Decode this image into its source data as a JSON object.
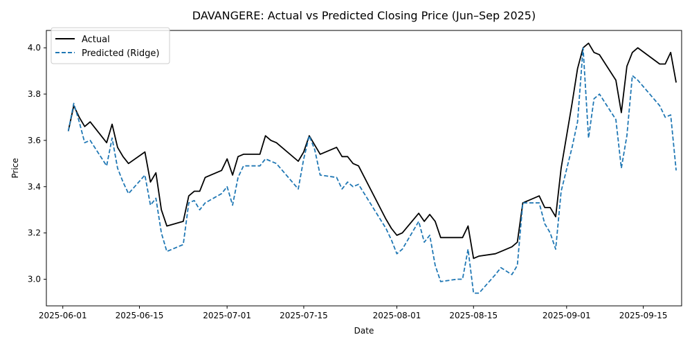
{
  "chart_data": {
    "type": "line",
    "title": "DAVANGERE: Actual vs Predicted Closing Price (Jun–Sep 2025)",
    "xlabel": "Date",
    "ylabel": "Price",
    "xlim": [
      "2025-05-29",
      "2025-09-22"
    ],
    "ylim": [
      2.885,
      4.075
    ],
    "x_ticks": [
      "2025-06-01",
      "2025-06-15",
      "2025-07-01",
      "2025-07-15",
      "2025-08-01",
      "2025-08-15",
      "2025-09-01",
      "2025-09-15"
    ],
    "y_ticks": [
      "3.0",
      "3.2",
      "3.4",
      "3.6",
      "3.8",
      "4.0"
    ],
    "grid": false,
    "legend": "top-left",
    "series": [
      {
        "name": "Actual",
        "color": "#000000",
        "style": "solid",
        "points": [
          [
            "2025-06-02",
            3.64
          ],
          [
            "2025-06-03",
            3.75
          ],
          [
            "2025-06-04",
            3.7
          ],
          [
            "2025-06-05",
            3.66
          ],
          [
            "2025-06-06",
            3.68
          ],
          [
            "2025-06-09",
            3.59
          ],
          [
            "2025-06-10",
            3.67
          ],
          [
            "2025-06-11",
            3.57
          ],
          [
            "2025-06-12",
            3.53
          ],
          [
            "2025-06-13",
            3.5
          ],
          [
            "2025-06-16",
            3.55
          ],
          [
            "2025-06-17",
            3.42
          ],
          [
            "2025-06-18",
            3.46
          ],
          [
            "2025-06-19",
            3.3
          ],
          [
            "2025-06-20",
            3.23
          ],
          [
            "2025-06-23",
            3.25
          ],
          [
            "2025-06-24",
            3.36
          ],
          [
            "2025-06-25",
            3.38
          ],
          [
            "2025-06-26",
            3.38
          ],
          [
            "2025-06-27",
            3.44
          ],
          [
            "2025-06-30",
            3.47
          ],
          [
            "2025-07-01",
            3.52
          ],
          [
            "2025-07-02",
            3.45
          ],
          [
            "2025-07-03",
            3.53
          ],
          [
            "2025-07-04",
            3.54
          ],
          [
            "2025-07-07",
            3.54
          ],
          [
            "2025-07-08",
            3.62
          ],
          [
            "2025-07-09",
            3.6
          ],
          [
            "2025-07-10",
            3.59
          ],
          [
            "2025-07-14",
            3.51
          ],
          [
            "2025-07-15",
            3.55
          ],
          [
            "2025-07-16",
            3.62
          ],
          [
            "2025-07-17",
            3.58
          ],
          [
            "2025-07-18",
            3.54
          ],
          [
            "2025-07-21",
            3.57
          ],
          [
            "2025-07-22",
            3.53
          ],
          [
            "2025-07-23",
            3.53
          ],
          [
            "2025-07-24",
            3.5
          ],
          [
            "2025-07-25",
            3.49
          ],
          [
            "2025-07-30",
            3.26
          ],
          [
            "2025-07-31",
            3.22
          ],
          [
            "2025-08-01",
            3.19
          ],
          [
            "2025-08-02",
            3.2
          ],
          [
            "2025-08-05",
            3.285
          ],
          [
            "2025-08-06",
            3.25
          ],
          [
            "2025-08-07",
            3.28
          ],
          [
            "2025-08-08",
            3.25
          ],
          [
            "2025-08-09",
            3.18
          ],
          [
            "2025-08-12",
            3.18
          ],
          [
            "2025-08-13",
            3.18
          ],
          [
            "2025-08-14",
            3.23
          ],
          [
            "2025-08-15",
            3.09
          ],
          [
            "2025-08-16",
            3.1
          ],
          [
            "2025-08-19",
            3.11
          ],
          [
            "2025-08-20",
            3.12
          ],
          [
            "2025-08-22",
            3.14
          ],
          [
            "2025-08-23",
            3.16
          ],
          [
            "2025-08-24",
            3.33
          ],
          [
            "2025-08-27",
            3.36
          ],
          [
            "2025-08-28",
            3.31
          ],
          [
            "2025-08-29",
            3.31
          ],
          [
            "2025-08-30",
            3.27
          ],
          [
            "2025-08-31",
            3.48
          ],
          [
            "2025-09-02",
            3.76
          ],
          [
            "2025-09-03",
            3.91
          ],
          [
            "2025-09-04",
            4.0
          ],
          [
            "2025-09-05",
            4.02
          ],
          [
            "2025-09-06",
            3.98
          ],
          [
            "2025-09-07",
            3.97
          ],
          [
            "2025-09-10",
            3.86
          ],
          [
            "2025-09-11",
            3.72
          ],
          [
            "2025-09-12",
            3.92
          ],
          [
            "2025-09-13",
            3.98
          ],
          [
            "2025-09-14",
            4.0
          ],
          [
            "2025-09-18",
            3.93
          ],
          [
            "2025-09-19",
            3.93
          ],
          [
            "2025-09-20",
            3.98
          ],
          [
            "2025-09-21",
            3.85
          ]
        ]
      },
      {
        "name": "Predicted (Ridge)",
        "color": "#1f77b4",
        "style": "dashed",
        "points": [
          [
            "2025-06-02",
            3.64
          ],
          [
            "2025-06-03",
            3.76
          ],
          [
            "2025-06-04",
            3.68
          ],
          [
            "2025-06-05",
            3.59
          ],
          [
            "2025-06-06",
            3.6
          ],
          [
            "2025-06-09",
            3.49
          ],
          [
            "2025-06-10",
            3.61
          ],
          [
            "2025-06-11",
            3.48
          ],
          [
            "2025-06-12",
            3.42
          ],
          [
            "2025-06-13",
            3.37
          ],
          [
            "2025-06-16",
            3.45
          ],
          [
            "2025-06-17",
            3.32
          ],
          [
            "2025-06-18",
            3.35
          ],
          [
            "2025-06-19",
            3.2
          ],
          [
            "2025-06-20",
            3.12
          ],
          [
            "2025-06-23",
            3.15
          ],
          [
            "2025-06-24",
            3.33
          ],
          [
            "2025-06-25",
            3.34
          ],
          [
            "2025-06-26",
            3.3
          ],
          [
            "2025-06-27",
            3.33
          ],
          [
            "2025-06-30",
            3.37
          ],
          [
            "2025-07-01",
            3.4
          ],
          [
            "2025-07-02",
            3.32
          ],
          [
            "2025-07-03",
            3.44
          ],
          [
            "2025-07-04",
            3.49
          ],
          [
            "2025-07-07",
            3.49
          ],
          [
            "2025-07-08",
            3.52
          ],
          [
            "2025-07-09",
            3.51
          ],
          [
            "2025-07-10",
            3.5
          ],
          [
            "2025-07-14",
            3.39
          ],
          [
            "2025-07-15",
            3.52
          ],
          [
            "2025-07-16",
            3.62
          ],
          [
            "2025-07-17",
            3.56
          ],
          [
            "2025-07-18",
            3.45
          ],
          [
            "2025-07-21",
            3.44
          ],
          [
            "2025-07-22",
            3.39
          ],
          [
            "2025-07-23",
            3.42
          ],
          [
            "2025-07-24",
            3.4
          ],
          [
            "2025-07-25",
            3.41
          ],
          [
            "2025-07-30",
            3.22
          ],
          [
            "2025-07-31",
            3.17
          ],
          [
            "2025-08-01",
            3.11
          ],
          [
            "2025-08-02",
            3.13
          ],
          [
            "2025-08-05",
            3.25
          ],
          [
            "2025-08-06",
            3.16
          ],
          [
            "2025-08-07",
            3.19
          ],
          [
            "2025-08-08",
            3.06
          ],
          [
            "2025-08-09",
            2.99
          ],
          [
            "2025-08-12",
            3.0
          ],
          [
            "2025-08-13",
            3.0
          ],
          [
            "2025-08-14",
            3.13
          ],
          [
            "2025-08-15",
            2.94
          ],
          [
            "2025-08-16",
            2.94
          ],
          [
            "2025-08-19",
            3.02
          ],
          [
            "2025-08-20",
            3.05
          ],
          [
            "2025-08-22",
            3.02
          ],
          [
            "2025-08-23",
            3.06
          ],
          [
            "2025-08-24",
            3.33
          ],
          [
            "2025-08-27",
            3.33
          ],
          [
            "2025-08-28",
            3.24
          ],
          [
            "2025-08-29",
            3.2
          ],
          [
            "2025-08-30",
            3.13
          ],
          [
            "2025-08-31",
            3.38
          ],
          [
            "2025-09-02",
            3.57
          ],
          [
            "2025-09-03",
            3.68
          ],
          [
            "2025-09-04",
            4.0
          ],
          [
            "2025-09-05",
            3.61
          ],
          [
            "2025-09-06",
            3.78
          ],
          [
            "2025-09-07",
            3.8
          ],
          [
            "2025-09-10",
            3.69
          ],
          [
            "2025-09-11",
            3.48
          ],
          [
            "2025-09-12",
            3.62
          ],
          [
            "2025-09-13",
            3.88
          ],
          [
            "2025-09-14",
            3.86
          ],
          [
            "2025-09-18",
            3.75
          ],
          [
            "2025-09-19",
            3.7
          ],
          [
            "2025-09-20",
            3.71
          ],
          [
            "2025-09-21",
            3.47
          ]
        ]
      }
    ]
  }
}
